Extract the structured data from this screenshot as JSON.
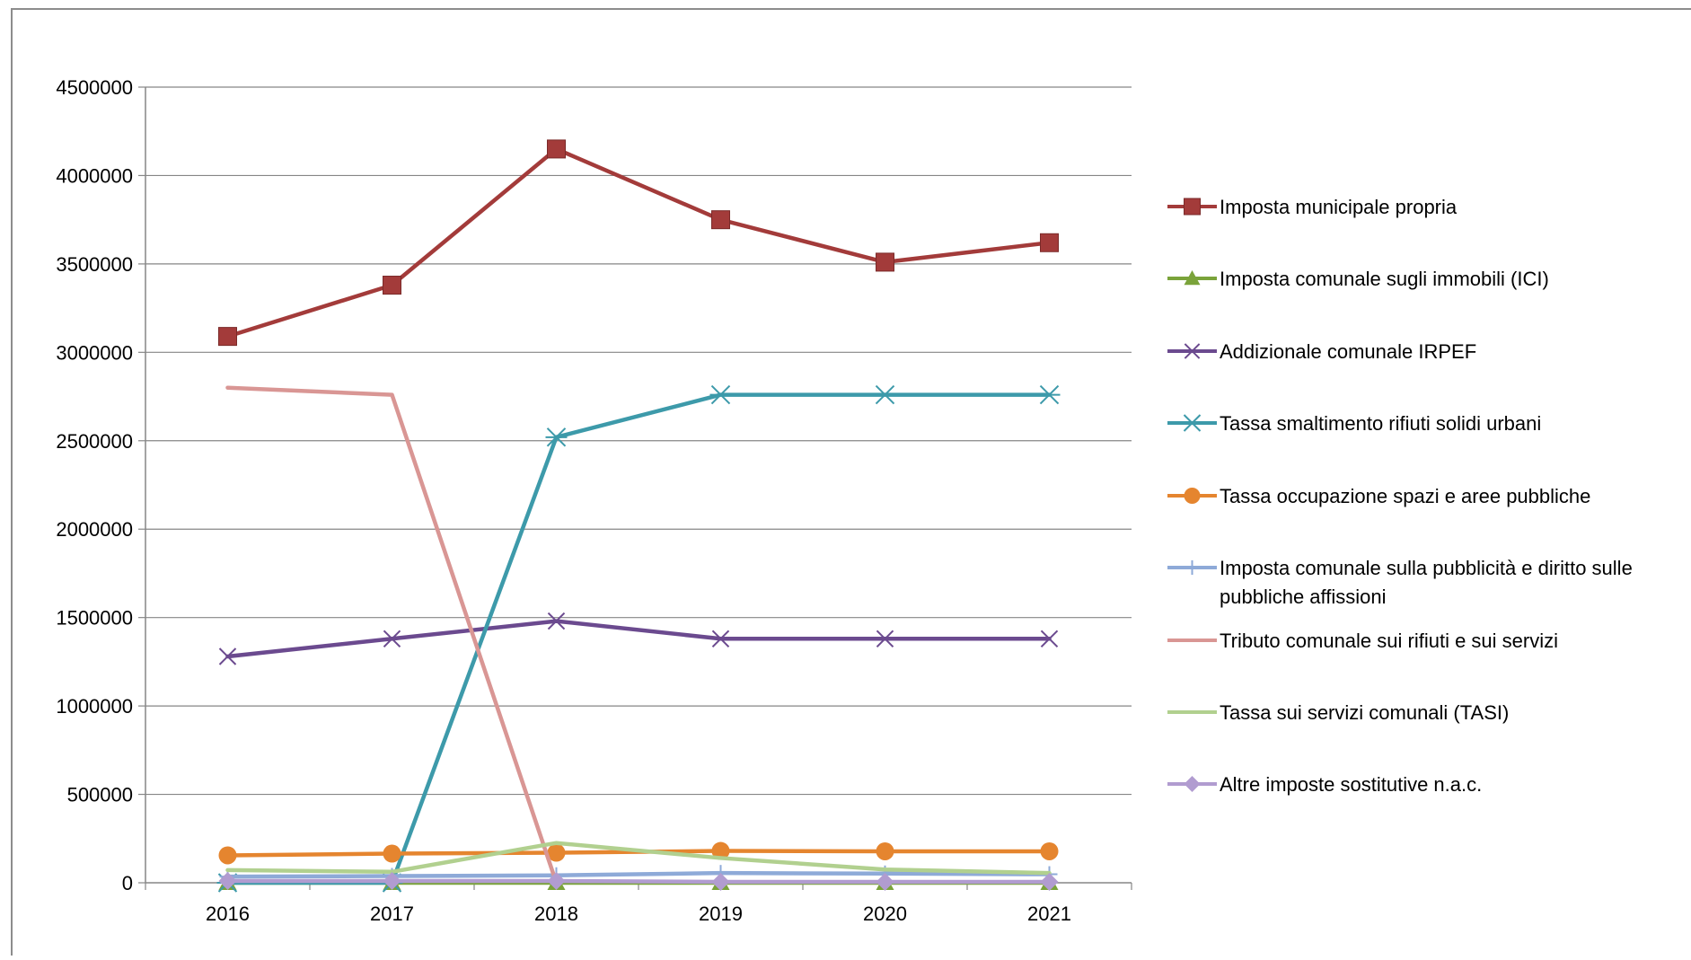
{
  "chart_data": {
    "type": "line",
    "title": "",
    "xlabel": "",
    "ylabel": "",
    "categories": [
      "2016",
      "2017",
      "2018",
      "2019",
      "2020",
      "2021"
    ],
    "y_ticks": [
      "0",
      "500000",
      "1000000",
      "1500000",
      "2000000",
      "2500000",
      "3000000",
      "3500000",
      "4000000",
      "4500000"
    ],
    "ylim": [
      0,
      4500000
    ],
    "grid": "horizontal",
    "legend_position": "right",
    "series": [
      {
        "name": "Imposta municipale propria",
        "color": "#a33b3a",
        "marker": "square",
        "values": [
          3090000,
          3380000,
          4150000,
          3750000,
          3510000,
          3620000
        ]
      },
      {
        "name": "Imposta comunale sugli immobili (ICI)",
        "color": "#7aa33a",
        "marker": "triangle",
        "values": [
          0,
          0,
          0,
          0,
          0,
          0
        ]
      },
      {
        "name": "Addizionale comunale IRPEF",
        "color": "#6b4a8f",
        "marker": "x",
        "values": [
          1280000,
          1380000,
          1480000,
          1380000,
          1380000,
          1380000
        ]
      },
      {
        "name": "Tassa smaltimento rifiuti solidi urbani",
        "color": "#3d9aaa",
        "marker": "asterisk",
        "values": [
          0,
          0,
          2520000,
          2760000,
          2760000,
          2760000
        ]
      },
      {
        "name": "Tassa occupazione spazi e aree pubbliche",
        "color": "#e5852f",
        "marker": "circle",
        "values": [
          155000,
          165000,
          170000,
          180000,
          178000,
          178000
        ]
      },
      {
        "name": "Imposta comunale sulla pubblicità e diritto sulle pubbliche affissioni",
        "color": "#8eaad8",
        "marker": "plus",
        "values": [
          35000,
          38000,
          42000,
          55000,
          52000,
          48000
        ]
      },
      {
        "name": "Tributo comunale sui rifiuti e sui servizi",
        "color": "#d99694",
        "marker": "none",
        "values": [
          2800000,
          2760000,
          0,
          null,
          null,
          null
        ]
      },
      {
        "name": "Tassa sui servizi comunali (TASI)",
        "color": "#b1d08f",
        "marker": "none",
        "values": [
          72000,
          62000,
          225000,
          140000,
          75000,
          55000
        ]
      },
      {
        "name": "Altre imposte sostitutive n.a.c.",
        "color": "#b19cd0",
        "marker": "diamond",
        "values": [
          10000,
          10000,
          10000,
          5000,
          5000,
          5000
        ]
      }
    ]
  }
}
